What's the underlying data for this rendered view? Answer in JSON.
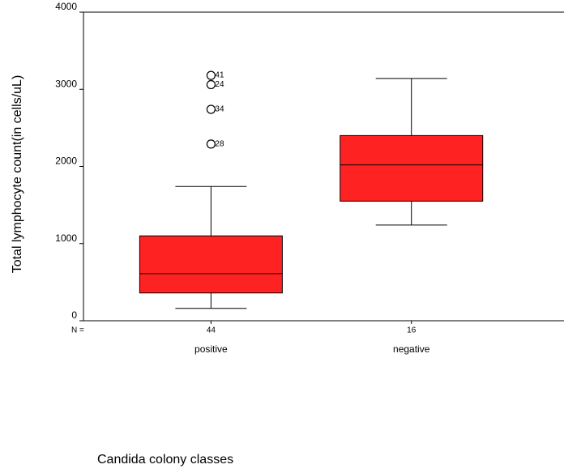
{
  "chart_data": {
    "type": "box",
    "x_label": "Candida colony classes",
    "y_label": "Total lymphocyte count(in cells/uL)",
    "n_label": "N =",
    "categories": [
      "positive",
      "negative"
    ],
    "n": [
      44,
      16
    ],
    "color": "#ff2222",
    "boxes": [
      {
        "min": 160,
        "q1": 360,
        "median": 610,
        "q3": 1100,
        "max": 1740,
        "outliers": [
          {
            "value": 3180,
            "label": "41"
          },
          {
            "value": 3060,
            "label": "24"
          },
          {
            "value": 2740,
            "label": "34"
          },
          {
            "value": 2290,
            "label": "28"
          }
        ]
      },
      {
        "min": 1240,
        "q1": 1550,
        "median": 2020,
        "q3": 2400,
        "max": 3140,
        "outliers": []
      }
    ],
    "ylim": [
      0,
      4000
    ],
    "yticks": [
      0,
      1000,
      2000,
      3000,
      4000
    ]
  }
}
